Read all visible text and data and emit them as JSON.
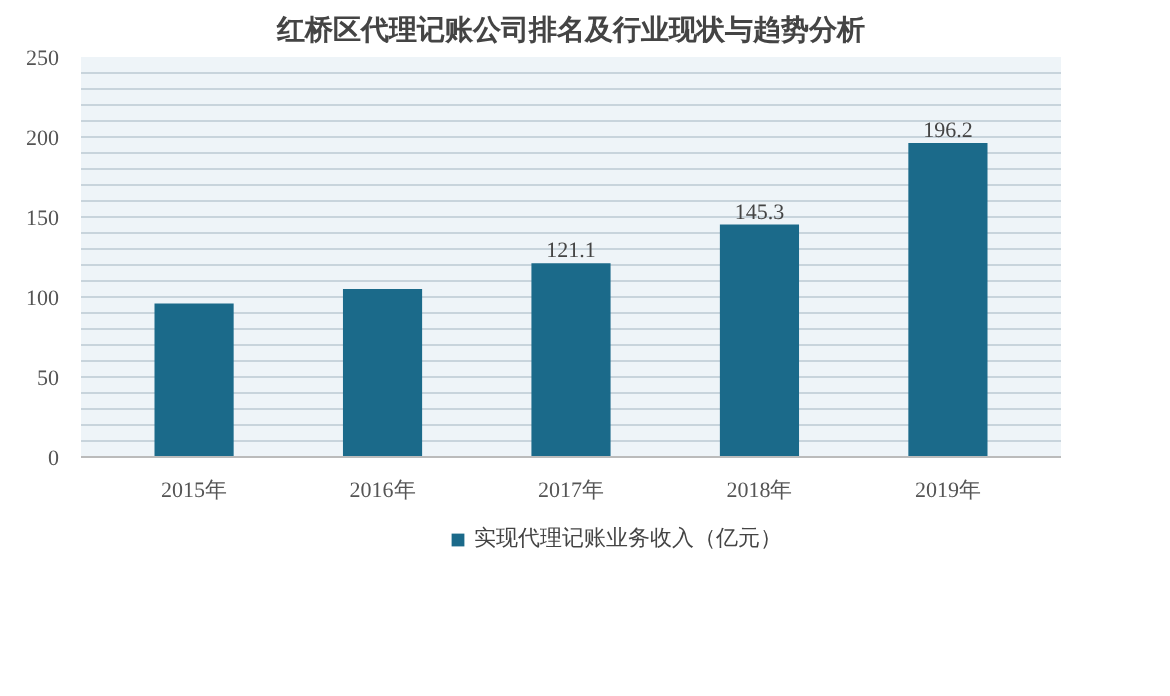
{
  "chart_data": {
    "type": "bar",
    "title": "红桥区代理记账公司排名及行业现状与趋势分析",
    "categories": [
      "2015年",
      "2016年",
      "2017年",
      "2018年",
      "2019年"
    ],
    "series": [
      {
        "name": "实现代理记账业务收入（亿元）",
        "color": "#1b6a8a",
        "values": [
          96,
          105,
          121.1,
          145.3,
          196.2
        ],
        "value_labels": [
          null,
          null,
          "121.1",
          "145.3",
          "196.2"
        ]
      }
    ],
    "ylim": [
      0,
      250
    ],
    "yticks": [
      0,
      {
        "value": 10,
        "label": null
      },
      {
        "value": 20,
        "label": null
      },
      {
        "value": 30,
        "label": null
      },
      {
        "value": 40,
        "label": null
      },
      50,
      {
        "value": 60,
        "label": null
      },
      {
        "value": 70,
        "label": null
      },
      {
        "value": 80,
        "label": null
      },
      {
        "value": 90,
        "label": null
      },
      100,
      {
        "value": 110,
        "label": null
      },
      {
        "value": 120,
        "label": null
      },
      {
        "value": 130,
        "label": null
      },
      {
        "value": 140,
        "label": null
      },
      150,
      {
        "value": 160,
        "label": null
      },
      {
        "value": 170,
        "label": null
      },
      {
        "value": 180,
        "label": null
      },
      {
        "value": 190,
        "label": null
      },
      200,
      {
        "value": 210,
        "label": null
      },
      {
        "value": 220,
        "label": null
      },
      {
        "value": 230,
        "label": null
      },
      {
        "value": 240,
        "label": null
      },
      250
    ],
    "grid": "y",
    "legend": "bottom"
  }
}
